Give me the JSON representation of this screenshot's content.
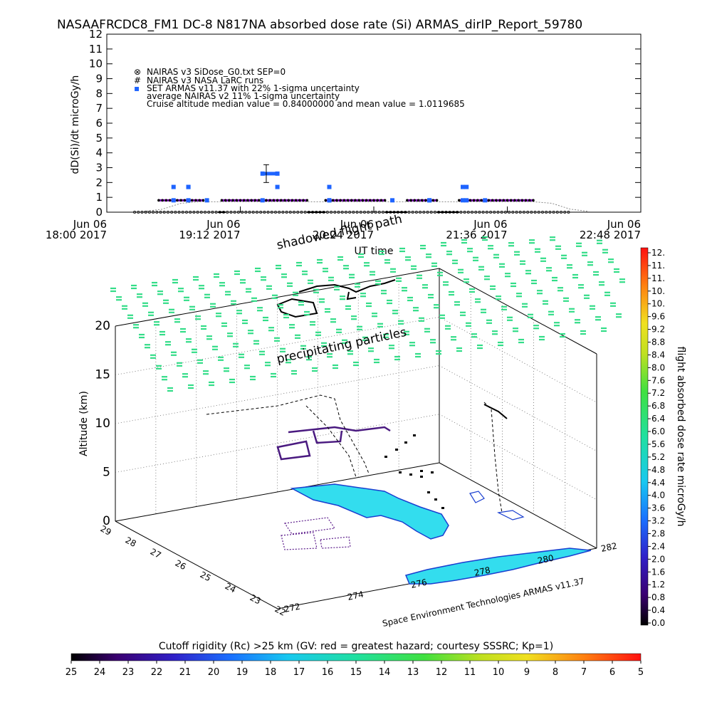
{
  "header": {
    "title": "NASAAFRCDC8_FM1 DC-8   N817NA absorbed dose rate (Si) ARMAS_dirIP_Report_59780"
  },
  "top_legend": {
    "lines": [
      {
        "marker": "⊗",
        "text": "NAIRAS v3 SiDose_G0.txt SEP=0"
      },
      {
        "marker": "#",
        "text": "NAIRAS v3 NASA LaRC runs"
      },
      {
        "marker": "▪",
        "text": "SET ARMAS v11.37 with 22% 1-sigma uncertainty",
        "color": "#1e64ff"
      },
      {
        "marker": "",
        "text": "average NAIRAS v2 11% 1-sigma uncertainty"
      },
      {
        "marker": "",
        "text": "Cruise altitude median value = 0.84000000 and mean value = 1.0119685"
      }
    ]
  },
  "annotations": {
    "shadowed_path": "shadowed flight path",
    "precipitating": "precipitating particles",
    "credit": "Space Environment Technologies ARMAS v11.37"
  },
  "colorbar_right": {
    "title": "flight absorbed dose rate microGy/h",
    "ticks": [
      "12.",
      "11.",
      "11.",
      "10.",
      "10.",
      "9.6",
      "9.2",
      "8.8",
      "8.4",
      "8.0",
      "7.6",
      "7.2",
      "6.8",
      "6.4",
      "6.0",
      "5.6",
      "5.2",
      "4.8",
      "4.4",
      "4.0",
      "3.6",
      "3.2",
      "2.8",
      "2.4",
      "2.0",
      "1.6",
      "1.2",
      "0.8",
      "0.4",
      "0.0"
    ]
  },
  "colorbar_bottom": {
    "title": "Cutoff rigidity (Rc) >25 km (GV: red = greatest hazard; courtesy SSSRC; Kp=1)",
    "ticks": [
      "25",
      "24",
      "23",
      "22",
      "21",
      "20",
      "19",
      "18",
      "17",
      "16",
      "15",
      "14",
      "13",
      "12",
      "11",
      "10",
      "9",
      "8",
      "7",
      "6",
      "5"
    ]
  },
  "colors": {
    "armas": "#1e64ff",
    "nairas_line": "#8800cc",
    "land": "#33ddee",
    "particles": "#33dd88",
    "track": "#000000"
  },
  "chart_data": [
    {
      "type": "line",
      "title": "NASAAFRCDC8_FM1 DC-8   N817NA absorbed dose rate (Si) ARMAS_dirIP_Report_59780",
      "ylabel": "dD(Si)/dt microGy/h",
      "xlabel": "UT time",
      "ylim": [
        0,
        12
      ],
      "yticks": [
        "0",
        "1",
        "2",
        "3",
        "4",
        "5",
        "6",
        "7",
        "8",
        "9",
        "10",
        "11",
        "12"
      ],
      "x_ticks": [
        {
          "line1": "Jun 06",
          "line2": "18:00 2017"
        },
        {
          "line1": "Jun 06",
          "line2": "19:12 2017"
        },
        {
          "line1": "Jun 06",
          "line2": "20:24 2017"
        },
        {
          "line1": "Jun 06",
          "line2": "21:36 2017"
        },
        {
          "line1": "Jun 06",
          "line2": "22:48 2017"
        }
      ],
      "x_unit": "minutes after 18:00 UT",
      "xlim": [
        0,
        288
      ],
      "series": [
        {
          "name": "SET ARMAS v11.37 with 22% 1-sigma uncertainty",
          "x": [
            36,
            36,
            44,
            44,
            44,
            54,
            84,
            84,
            92,
            92,
            120,
            120,
            120,
            154,
            174,
            174,
            192,
            192,
            194,
            194,
            204
          ],
          "y": [
            0.8,
            1.7,
            0.8,
            1.7,
            1.7,
            0.8,
            0.8,
            2.6,
            2.6,
            1.7,
            0.8,
            0.8,
            1.7,
            0.8,
            0.8,
            0.8,
            0.8,
            1.7,
            1.7,
            0.8,
            0.8
          ]
        },
        {
          "name": "NAIRAS v3 SiDose_G0.txt SEP=0",
          "x": [
            20,
            30,
            40,
            50,
            60,
            70,
            80,
            90,
            100,
            110,
            120,
            130,
            140,
            150,
            160,
            170,
            180,
            190,
            200,
            210,
            220,
            230,
            240,
            250,
            260
          ],
          "y": [
            0.05,
            0.2,
            0.6,
            0.7,
            0.7,
            0.7,
            0.7,
            0.7,
            0.7,
            0.7,
            0.7,
            0.7,
            0.7,
            0.7,
            0.7,
            0.7,
            0.7,
            0.7,
            0.7,
            0.7,
            0.7,
            0.7,
            0.6,
            0.2,
            0.05
          ]
        }
      ]
    },
    {
      "type": "scatter",
      "title": "",
      "ylabel": "Altitude (km)",
      "zlim": [
        0,
        20
      ],
      "z_ticks": [
        "0",
        "5",
        "10",
        "15",
        "20"
      ],
      "x_ticks": [
        "272",
        "274",
        "276",
        "278",
        "280",
        "282"
      ],
      "y_ticks": [
        "22",
        "23",
        "24",
        "25",
        "26",
        "27",
        "28",
        "29"
      ]
    }
  ]
}
